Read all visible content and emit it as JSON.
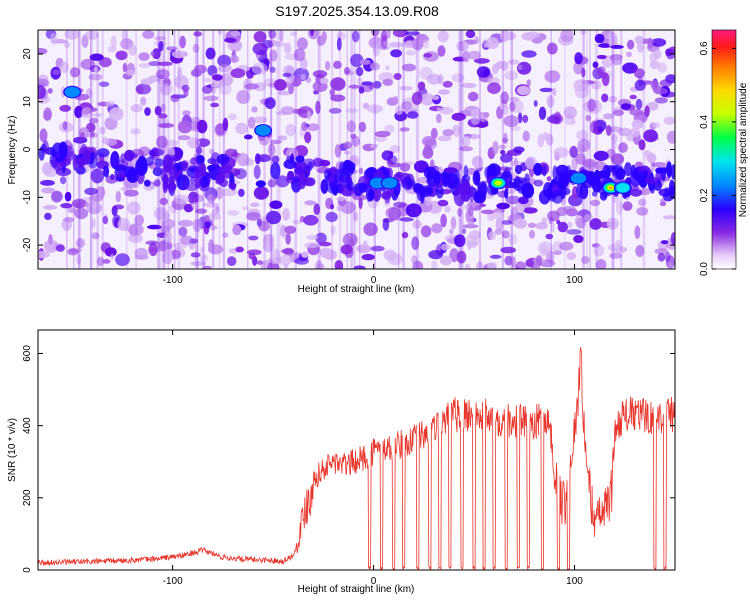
{
  "figure": {
    "title": "S197.2025.354.13.09.R08"
  },
  "chart_data": [
    {
      "type": "heatmap",
      "xlabel": "Height of straight line (km)",
      "ylabel": "Frequency (Hz)",
      "xlim": [
        -167,
        150
      ],
      "ylim": [
        -25,
        25
      ],
      "xticks": [
        -100,
        0,
        100
      ],
      "yticks": [
        -20,
        -10,
        0,
        10,
        20
      ],
      "colorbar": {
        "label": "Normalized spectral amplitude",
        "range": [
          0,
          0.65
        ],
        "ticks": [
          0.0,
          0.2,
          0.4,
          0.6
        ],
        "tick_labels": [
          "0.0",
          "0.2",
          "0.4",
          "0.6"
        ]
      },
      "ridge": {
        "description_points_x": [
          -150,
          -110,
          -70,
          -50,
          -30,
          -10,
          0,
          20,
          45,
          62,
          75,
          100,
          120,
          140
        ],
        "description_points_y": [
          -2,
          -5,
          -5,
          -4,
          -5,
          -6,
          -7,
          -7,
          -7,
          -7,
          -7,
          -7,
          -7,
          -7
        ]
      },
      "hotspots": [
        {
          "x": -150,
          "y": 12,
          "value": 0.25
        },
        {
          "x": -55,
          "y": 4,
          "value": 0.25
        },
        {
          "x": 2,
          "y": -7,
          "value": 0.28
        },
        {
          "x": 8,
          "y": -7,
          "value": 0.25
        },
        {
          "x": 62,
          "y": -7,
          "value": 0.45
        },
        {
          "x": 102,
          "y": -6,
          "value": 0.25
        },
        {
          "x": 118,
          "y": -8,
          "value": 0.55
        },
        {
          "x": 124,
          "y": -8,
          "value": 0.3
        }
      ]
    },
    {
      "type": "line",
      "xlabel": "Height of straight line (km)",
      "ylabel": "SNR (10 * v/v)",
      "xlim": [
        -167,
        150
      ],
      "ylim": [
        0,
        665
      ],
      "xticks": [
        -100,
        0,
        100
      ],
      "yticks": [
        0,
        200,
        400,
        600
      ],
      "series": [
        {
          "color": "#e8352b",
          "x": [
            -167,
            -150,
            -130,
            -110,
            -95,
            -85,
            -75,
            -65,
            -55,
            -45,
            -40,
            -38,
            -35,
            -30,
            -25,
            -20,
            -15,
            -10,
            -5,
            0,
            10,
            20,
            30,
            35,
            40,
            50,
            60,
            70,
            80,
            85,
            88,
            90,
            93,
            96,
            99,
            102,
            103,
            104,
            106,
            108,
            110,
            112,
            115,
            118,
            120,
            123,
            126,
            130,
            140,
            150
          ],
          "y": [
            20,
            22,
            25,
            30,
            40,
            55,
            35,
            30,
            28,
            25,
            40,
            70,
            150,
            250,
            280,
            300,
            290,
            300,
            310,
            330,
            340,
            360,
            390,
            410,
            430,
            430,
            420,
            415,
            410,
            420,
            400,
            250,
            190,
            180,
            350,
            470,
            660,
            450,
            300,
            200,
            140,
            150,
            165,
            200,
            380,
            420,
            430,
            430,
            425,
            430
          ],
          "dropout_x": [
            -2,
            4,
            10,
            15,
            22,
            28,
            33,
            38,
            44,
            50,
            55,
            60,
            66,
            72,
            77,
            84,
            92,
            97,
            140,
            145
          ],
          "dropout_value": 0
        }
      ]
    }
  ]
}
